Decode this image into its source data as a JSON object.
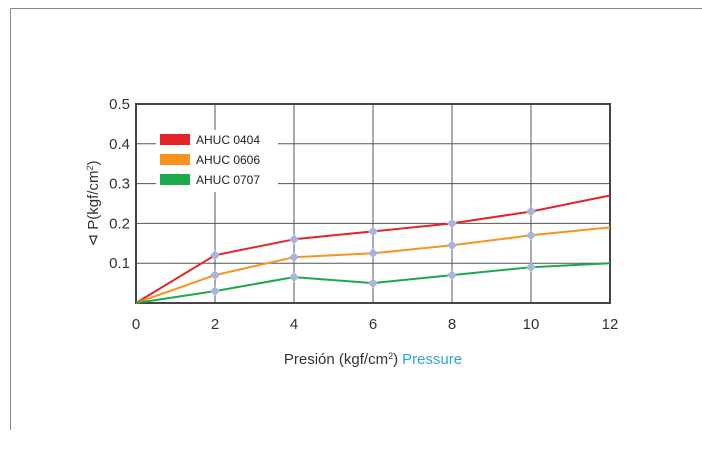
{
  "chart_data": {
    "type": "line",
    "x": [
      0,
      2,
      4,
      6,
      8,
      10,
      12
    ],
    "xlim": [
      0,
      12
    ],
    "ylim": [
      0,
      0.5
    ],
    "x_ticks": [
      "0",
      "2",
      "4",
      "6",
      "8",
      "10",
      "12"
    ],
    "y_ticks": [
      "0.1",
      "0.2",
      "0.3",
      "0.4",
      "0.5"
    ],
    "y_tick_values": [
      0.1,
      0.2,
      0.3,
      0.4,
      0.5
    ],
    "xlabel": {
      "main": "Presión (kgf/cm",
      "sup": "2",
      "close": ")",
      "english": "Pressure"
    },
    "ylabel": {
      "main": "⊲ P(kgf/cm",
      "sup": "2",
      "close": ")"
    },
    "grid": true,
    "legend_position": "top-left",
    "series": [
      {
        "name": "AHUC 0404",
        "color": "#e3242b",
        "values": [
          0.0,
          0.12,
          0.16,
          0.18,
          0.2,
          0.23,
          0.27
        ]
      },
      {
        "name": "AHUC 0606",
        "color": "#f7941d",
        "values": [
          0.0,
          0.07,
          0.115,
          0.125,
          0.145,
          0.17,
          0.19
        ]
      },
      {
        "name": "AHUC 0707",
        "color": "#1aaa4b",
        "values": [
          0.0,
          0.03,
          0.065,
          0.05,
          0.07,
          0.09,
          0.1
        ]
      }
    ],
    "marker_color": "#a7b5de"
  }
}
